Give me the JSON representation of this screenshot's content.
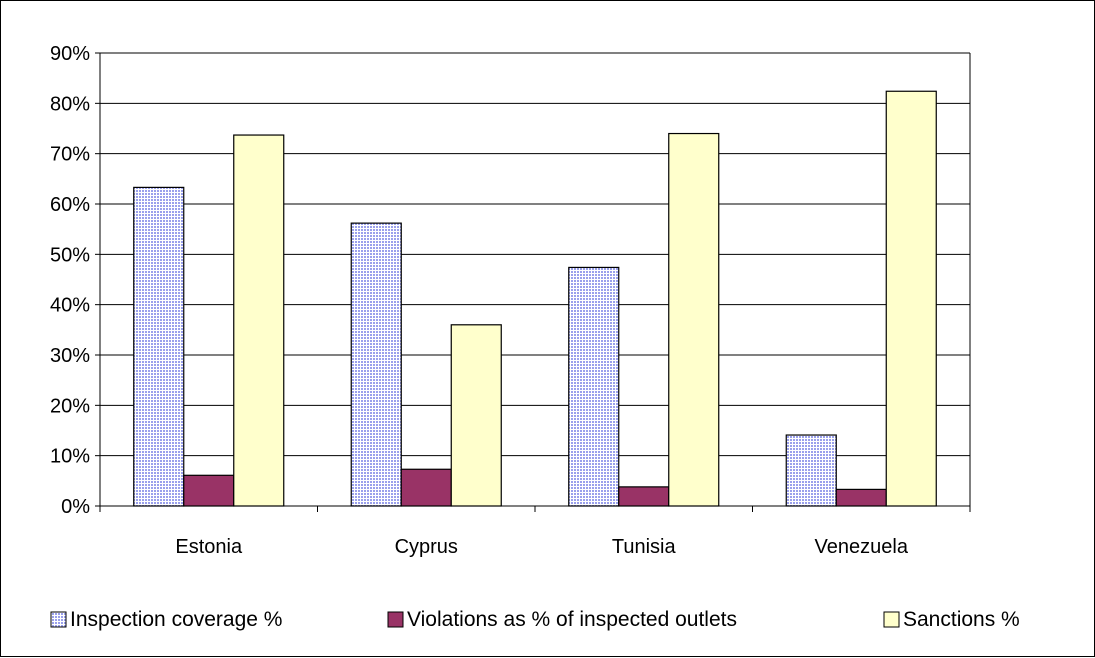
{
  "chart_data": {
    "type": "bar",
    "title": "",
    "xlabel": "",
    "ylabel": "",
    "categories": [
      "Estonia",
      "Cyprus",
      "Tunisia",
      "Venezuela"
    ],
    "series": [
      {
        "name": "Inspection coverage %",
        "values": [
          63.3,
          56.2,
          47.4,
          14.1
        ],
        "color": "#c9ccf4",
        "pattern": "dotted-grid"
      },
      {
        "name": "Violations as % of inspected outlets",
        "values": [
          6.1,
          7.3,
          3.8,
          3.3
        ],
        "color": "#993366",
        "pattern": "solid"
      },
      {
        "name": "Sanctions %",
        "values": [
          73.7,
          36.0,
          74.0,
          82.4
        ],
        "color": "#ffffcc",
        "pattern": "solid"
      }
    ],
    "ylim": [
      0,
      90
    ],
    "yticks": [
      "0%",
      "10%",
      "20%",
      "30%",
      "40%",
      "50%",
      "60%",
      "70%",
      "80%",
      "90%"
    ],
    "grid": true,
    "legend_position": "bottom"
  }
}
